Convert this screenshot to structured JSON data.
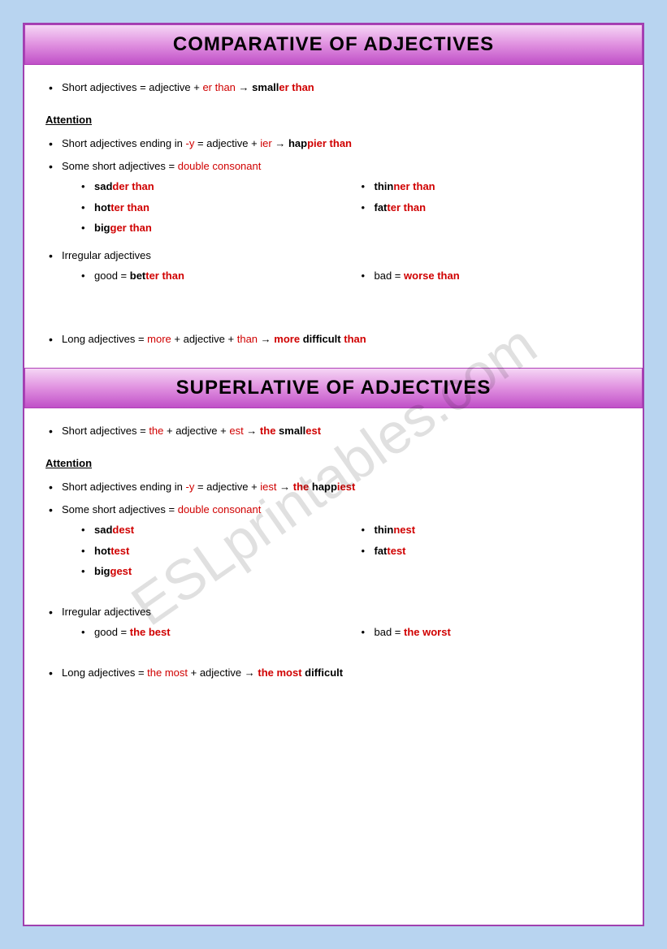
{
  "watermark": "ESLprintables.com",
  "comparative": {
    "title": "COMPARATIVE OF ADJECTIVES",
    "rule1": {
      "pre": "Short adjectives = adjective + ",
      "red1": "er than",
      "arrow": " → ",
      "ex_b": "small",
      "ex_r": "er than"
    },
    "attention": "Attention",
    "rule2": {
      "pre": "Short adjectives ending in ",
      "y": "-y",
      "mid": " = adjective + ",
      "ier": "ier",
      "arrow": " → ",
      "ex_b": "hap",
      "ex_r": "pier than"
    },
    "rule3": {
      "pre": "Some short adjectives = ",
      "dc": "double consonant"
    },
    "examples_double": {
      "left": [
        {
          "b": "sad",
          "r": "der than"
        },
        {
          "b": "hot",
          "r": "ter than"
        },
        {
          "b": "big",
          "r": "ger than"
        }
      ],
      "right": [
        {
          "b": "thin",
          "r": "ner than"
        },
        {
          "b": "fat",
          "r": "ter than"
        }
      ]
    },
    "irregular_label": "Irregular adjectives",
    "irregular": {
      "left": {
        "pre": "good = ",
        "b": "bet",
        "r": "ter than"
      },
      "right": {
        "pre": "bad = ",
        "b": "",
        "r": "worse than"
      }
    },
    "long": {
      "pre": "Long adjectives = ",
      "more": "more",
      "mid": " + adjective + ",
      "than": "than",
      "arrow": " → ",
      "ex_r1": "more",
      "ex_b": " difficult ",
      "ex_r2": "than"
    }
  },
  "superlative": {
    "title": "SUPERLATIVE OF ADJECTIVES",
    "rule1": {
      "pre": "Short adjectives = ",
      "the": "the",
      "mid": " + adjective + ",
      "est": "est",
      "arrow": "  → ",
      "ex_r1": "the",
      "ex_b": " small",
      "ex_r2": "est"
    },
    "attention": "Attention",
    "rule2": {
      "pre": "Short adjectives ending in ",
      "y": "-y",
      "mid": " = adjective + ",
      "iest": "iest",
      "arrow": " → ",
      "ex_r1": "the",
      "ex_b": " happ",
      "ex_r2": "iest"
    },
    "rule3": {
      "pre": "Some short adjectives = ",
      "dc": "double consonant"
    },
    "examples_double": {
      "left": [
        {
          "b": "sad",
          "r": "dest"
        },
        {
          "b": "hot",
          "r": "test"
        },
        {
          "b": "big",
          "r": "gest"
        }
      ],
      "right": [
        {
          "b": "thin",
          "r": "nest"
        },
        {
          "b": "fat",
          "r": "test"
        }
      ]
    },
    "irregular_label": "Irregular adjectives",
    "irregular": {
      "left": {
        "pre": "good = ",
        "r": "the best"
      },
      "right": {
        "pre": "bad = ",
        "r": "the worst"
      }
    },
    "long": {
      "pre": "Long adjectives =  ",
      "themost": "the most",
      "mid": "  + adjective  → ",
      "ex_r": "the most",
      "ex_b": " difficult"
    }
  }
}
